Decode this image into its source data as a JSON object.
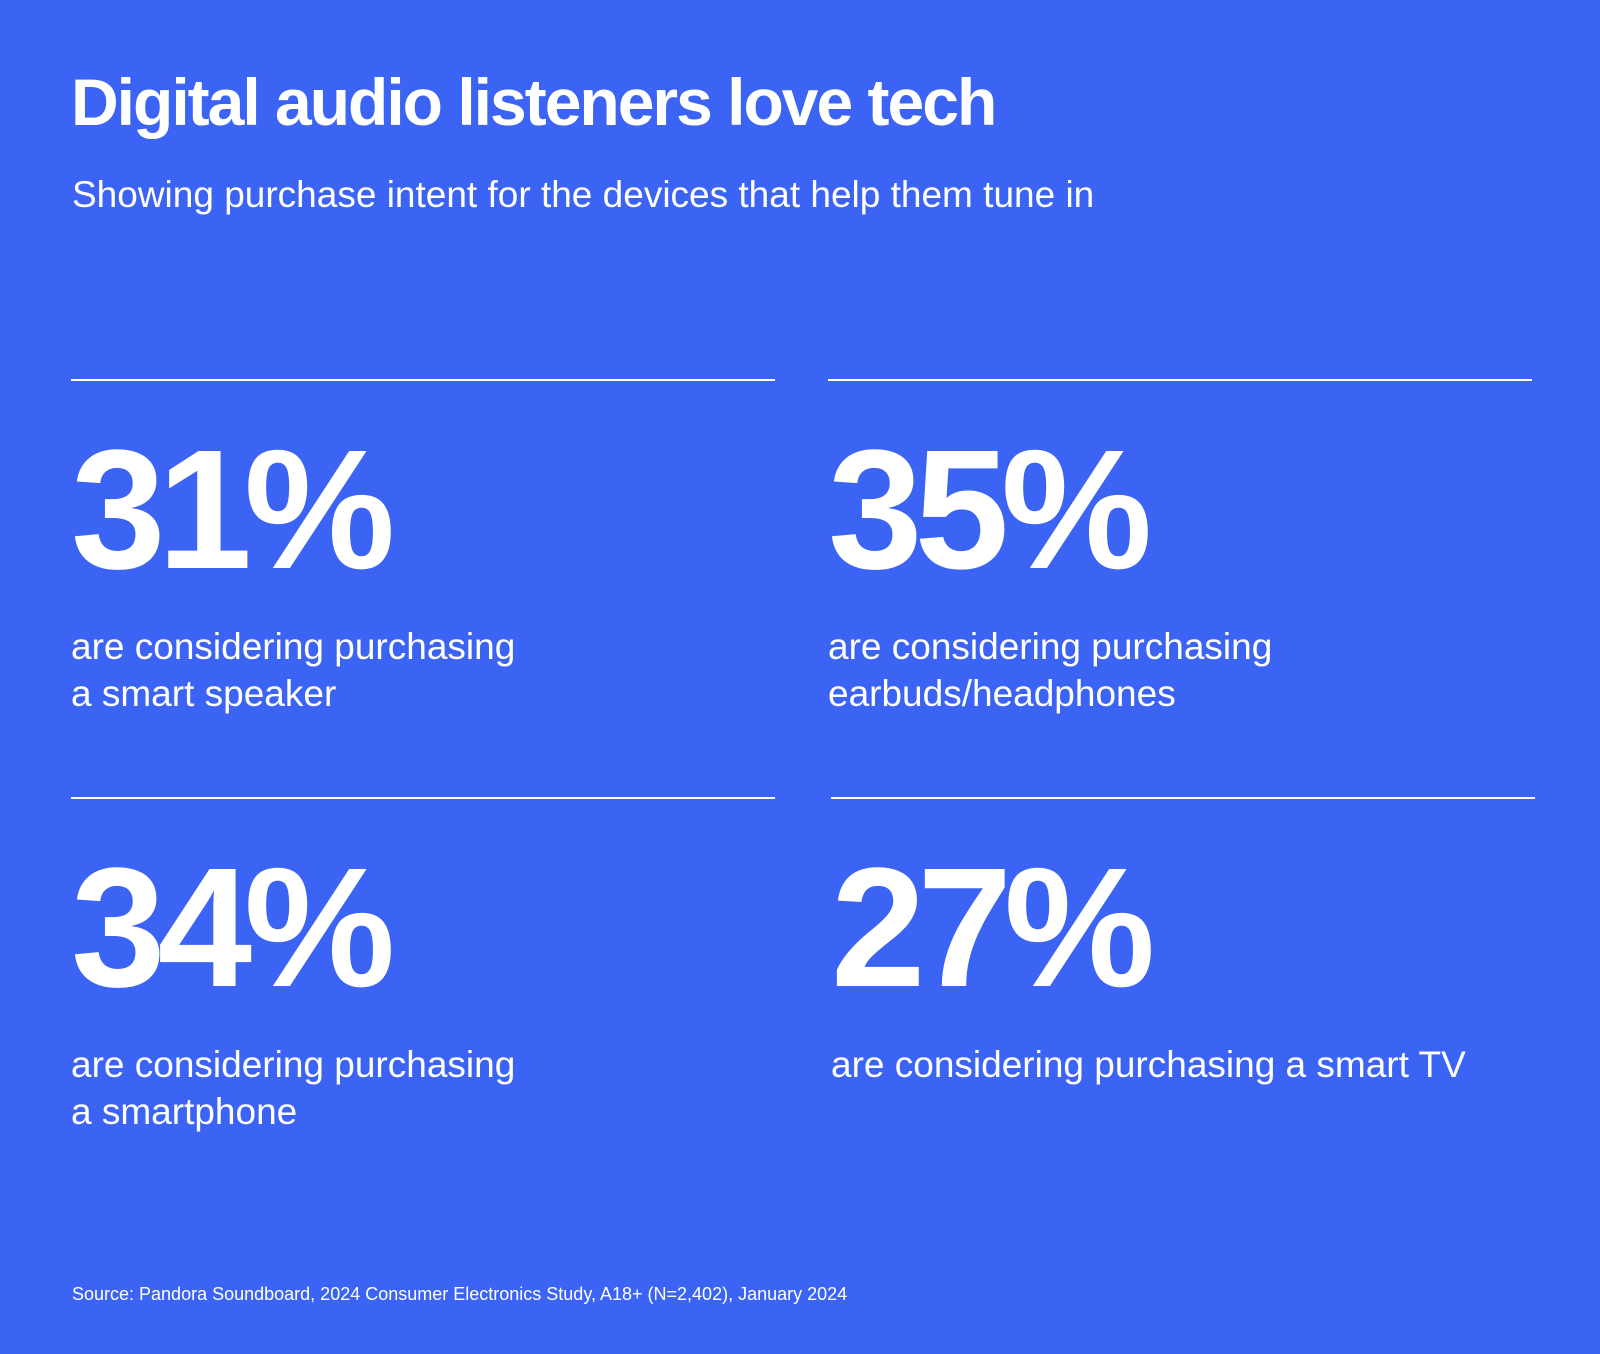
{
  "header": {
    "title": "Digital audio listeners love tech",
    "subtitle": "Showing purchase intent for the devices that help them tune in"
  },
  "stats": [
    {
      "value": "31%",
      "description": "are considering purchasing\na smart speaker"
    },
    {
      "value": "35%",
      "description": "are considering purchasing\nearbuds/headphones"
    },
    {
      "value": "34%",
      "description": "are considering purchasing\na smartphone"
    },
    {
      "value": "27%",
      "description": "are considering purchasing a smart TV"
    }
  ],
  "footer": {
    "source": "Source: Pandora Soundboard, 2024 Consumer Electronics Study, A18+ (N=2,402), January 2024"
  },
  "colors": {
    "background": "#3c64f4",
    "text": "#ffffff"
  }
}
